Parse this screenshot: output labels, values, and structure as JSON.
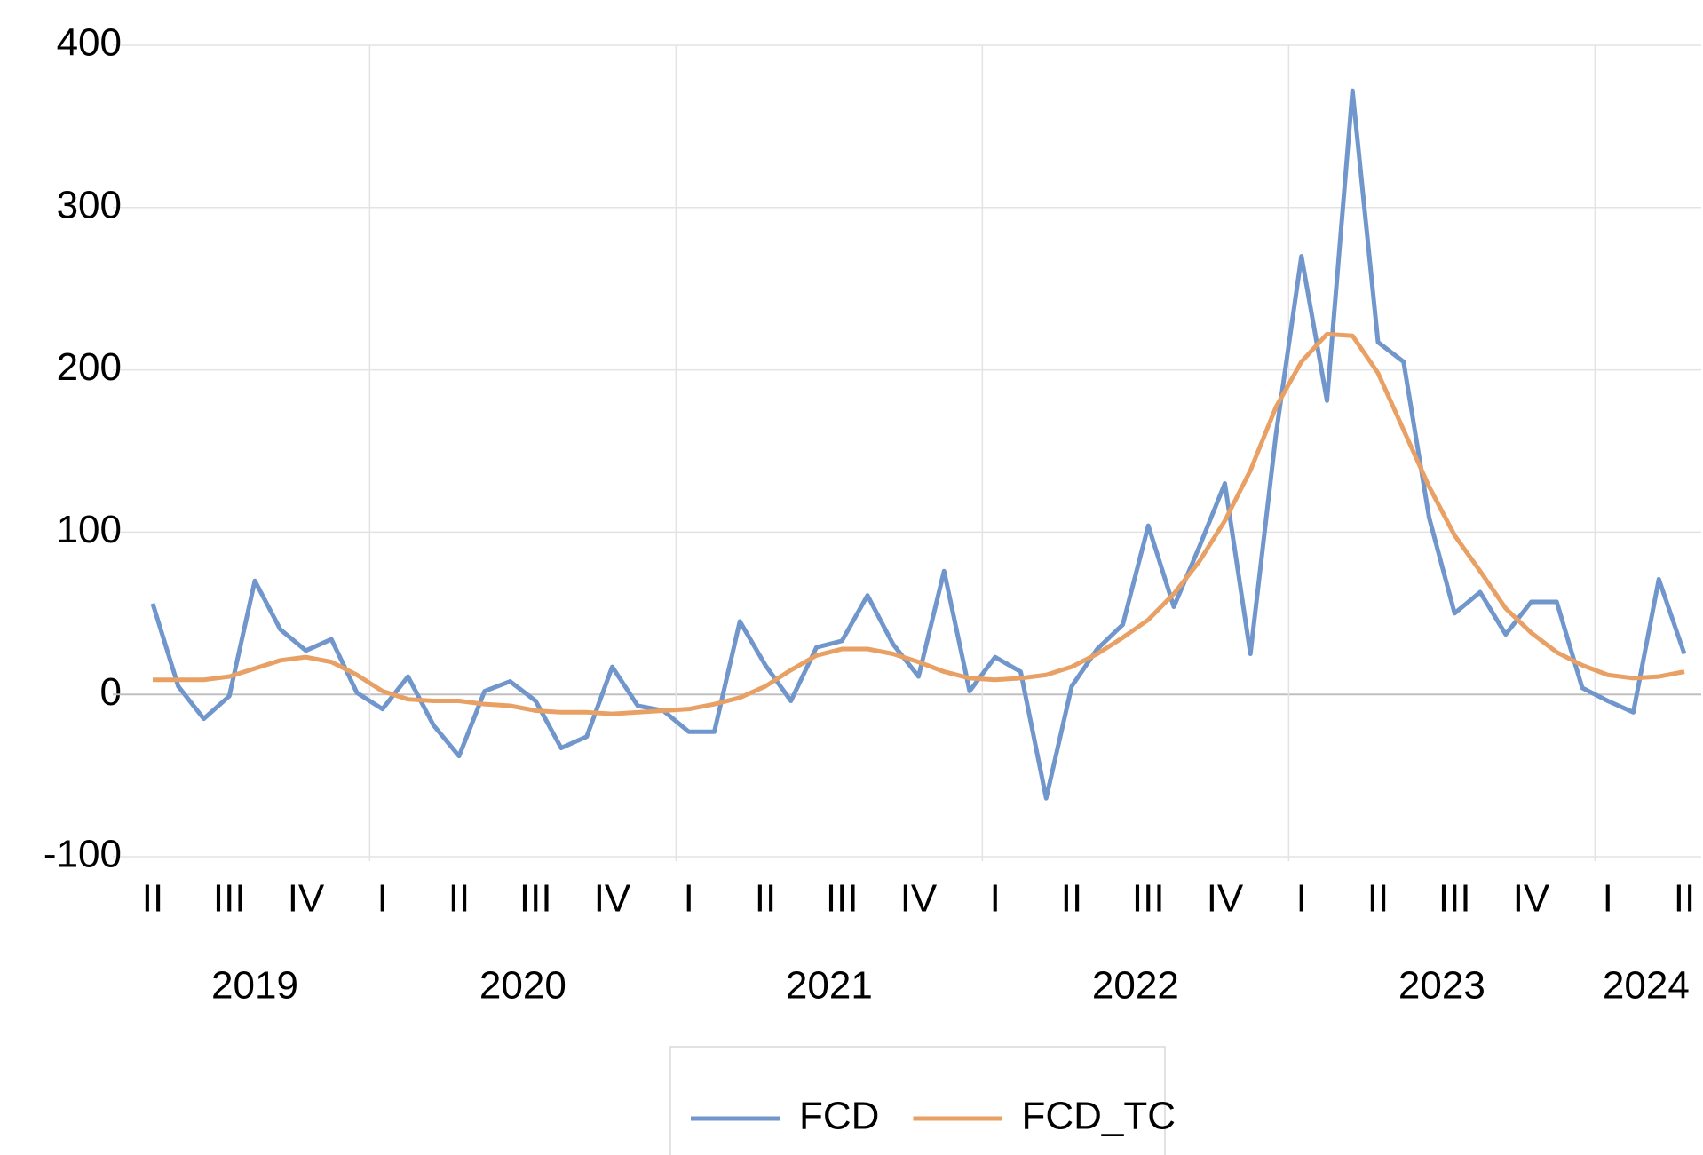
{
  "chart_data": {
    "type": "line",
    "categories": [
      "II",
      null,
      null,
      "III",
      null,
      null,
      "IV",
      null,
      null,
      "I",
      null,
      null,
      "II",
      null,
      null,
      "III",
      null,
      null,
      "IV",
      null,
      null,
      "I",
      null,
      null,
      "II",
      null,
      null,
      "III",
      null,
      null,
      "IV",
      null,
      null,
      "I",
      null,
      null,
      "II",
      null,
      null,
      "III",
      null,
      null,
      "IV",
      null,
      null,
      "I",
      null,
      null,
      "II",
      null,
      null,
      "III",
      null,
      null,
      "IV",
      null,
      null,
      "I",
      null,
      null,
      "II"
    ],
    "year_labels": [
      {
        "label": "2019",
        "count": 9
      },
      {
        "label": "2020",
        "count": 12
      },
      {
        "label": "2021",
        "count": 12
      },
      {
        "label": "2022",
        "count": 12
      },
      {
        "label": "2023",
        "count": 12
      },
      {
        "label": "2024",
        "count": 4
      }
    ],
    "series": [
      {
        "name": "FCD",
        "color": "#7096cc",
        "values": [
          56,
          5,
          -15,
          -1,
          70,
          40,
          27,
          34,
          1,
          -9,
          11,
          -19,
          -38,
          2,
          8,
          -4,
          -33,
          -26,
          17,
          -7,
          -10,
          -23,
          -23,
          45,
          18,
          -4,
          29,
          33,
          61,
          31,
          11,
          76,
          2,
          23,
          14,
          -64,
          5,
          28,
          43,
          104,
          54,
          91,
          130,
          25,
          160,
          270,
          181,
          372,
          217,
          205,
          109,
          50,
          63,
          37,
          57,
          57,
          4,
          -4,
          -11,
          71,
          25
        ]
      },
      {
        "name": "FCD_TC",
        "color": "#e8a064",
        "values": [
          9,
          9,
          9,
          11,
          16,
          21,
          23,
          20,
          12,
          2,
          -3,
          -4,
          -4,
          -6,
          -7,
          -10,
          -11,
          -11,
          -12,
          -11,
          -10,
          -9,
          -6,
          -2,
          5,
          15,
          24,
          28,
          28,
          25,
          20,
          14,
          10,
          9,
          10,
          12,
          17,
          25,
          35,
          46,
          62,
          82,
          107,
          138,
          177,
          205,
          222,
          221,
          198,
          163,
          128,
          98,
          76,
          53,
          38,
          26,
          18,
          12,
          10,
          11,
          14
        ]
      }
    ],
    "ylim": [
      -100,
      400
    ],
    "yticks": [
      -100,
      0,
      100,
      200,
      300,
      400
    ],
    "grid": true,
    "legend": "bottom"
  }
}
